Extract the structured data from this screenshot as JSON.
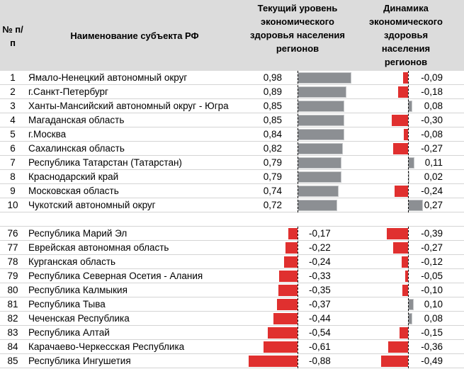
{
  "header": {
    "num": "№ п/п",
    "name": "Наименование субъекта РФ",
    "col1": "Текущий уровень экономического здоровья населения регионов",
    "col2": "Динамика экономического здоровья населения регионов"
  },
  "colors": {
    "positive_bar": "#8c8f93",
    "negative_bar": "#e0302f"
  },
  "chart_data": {
    "type": "table",
    "columns": [
      "№ п/п",
      "Наименование субъекта РФ",
      "Текущий уровень экономического здоровья населения регионов",
      "Динамика экономического здоровья населения регионов"
    ],
    "top_rows": [
      {
        "n": "1",
        "name": "Ямало-Ненецкий автономный округ",
        "level": "0,98",
        "dyn": "-0,09"
      },
      {
        "n": "2",
        "name": "г.Санкт-Петербург",
        "level": "0,89",
        "dyn": "-0,18"
      },
      {
        "n": "3",
        "name": "Ханты-Мансийский автономный округ - Югра",
        "level": "0,85",
        "dyn": "0,08"
      },
      {
        "n": "4",
        "name": "Магаданская область",
        "level": "0,85",
        "dyn": "-0,30"
      },
      {
        "n": "5",
        "name": "г.Москва",
        "level": "0,84",
        "dyn": "-0,08"
      },
      {
        "n": "6",
        "name": "Сахалинская область",
        "level": "0,82",
        "dyn": "-0,27"
      },
      {
        "n": "7",
        "name": "Республика Татарстан (Татарстан)",
        "level": "0,79",
        "dyn": "0,11"
      },
      {
        "n": "8",
        "name": "Краснодарский край",
        "level": "0,79",
        "dyn": "0,02"
      },
      {
        "n": "9",
        "name": "Московская область",
        "level": "0,74",
        "dyn": "-0,24"
      },
      {
        "n": "10",
        "name": "Чукотский автономный округ",
        "level": "0,72",
        "dyn": "0,27"
      }
    ],
    "bottom_rows": [
      {
        "n": "76",
        "name": "Республика Марий Эл",
        "level": "-0,17",
        "dyn": "-0,39"
      },
      {
        "n": "77",
        "name": "Еврейская автономная область",
        "level": "-0,22",
        "dyn": "-0,27"
      },
      {
        "n": "78",
        "name": "Курганская область",
        "level": "-0,24",
        "dyn": "-0,12"
      },
      {
        "n": "79",
        "name": "Республика Северная Осетия - Алания",
        "level": "-0,33",
        "dyn": "-0,05"
      },
      {
        "n": "80",
        "name": "Республика Калмыкия",
        "level": "-0,35",
        "dyn": "-0,10"
      },
      {
        "n": "81",
        "name": "Республика Тыва",
        "level": "-0,37",
        "dyn": "0,10"
      },
      {
        "n": "82",
        "name": "Чеченская Республика",
        "level": "-0,44",
        "dyn": "0,08"
      },
      {
        "n": "83",
        "name": "Республика Алтай",
        "level": "-0,54",
        "dyn": "-0,15"
      },
      {
        "n": "84",
        "name": "Карачаево-Черкесская Республика",
        "level": "-0,61",
        "dyn": "-0,36"
      },
      {
        "n": "85",
        "name": "Республика Ингушетия",
        "level": "-0,88",
        "dyn": "-0,49"
      }
    ]
  }
}
